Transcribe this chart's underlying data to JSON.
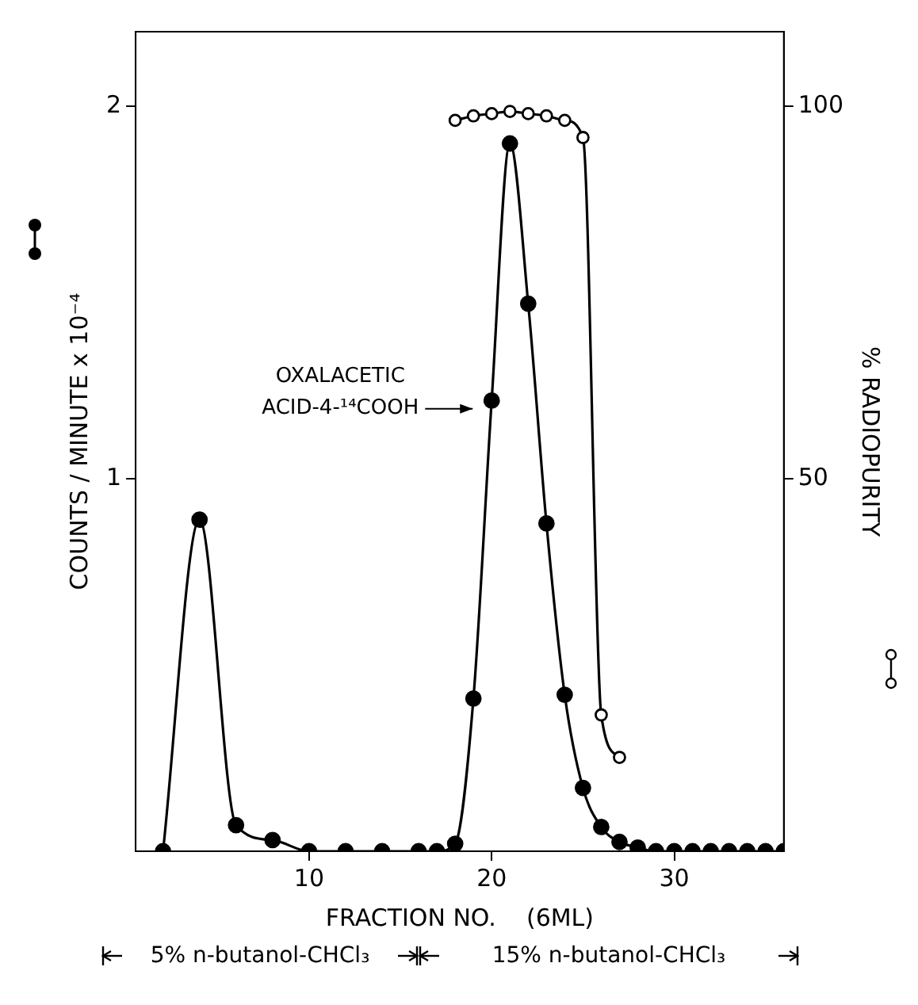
{
  "chart_data": {
    "type": "line",
    "xlabel": "FRACTION NO.    (6ML)",
    "ylabel": "COUNTS / MINUTE x 10⁻⁴",
    "y2label": "% RADIOPURITY",
    "xlim": [
      0.5,
      36
    ],
    "xticks": [
      10,
      20,
      30
    ],
    "ylim": [
      0,
      2.2
    ],
    "yticks": [
      1,
      2
    ],
    "y2lim": [
      0,
      110
    ],
    "y2ticks": [
      50,
      100
    ],
    "grid": false,
    "legend": false,
    "marker": "circle",
    "line_style": "solid",
    "series": [
      {
        "color": "#000000",
        "x": [
          2,
          4,
          6,
          8,
          10,
          12,
          14,
          16,
          17,
          18,
          19,
          20,
          21,
          22,
          23,
          24,
          25,
          26,
          27,
          28,
          29,
          30,
          31,
          32,
          33,
          34,
          35,
          36
        ],
        "values": [
          0,
          0.89,
          0.07,
          0.03,
          0,
          0,
          0,
          0,
          0,
          0.02,
          0.41,
          1.21,
          1.9,
          1.47,
          0.88,
          0.42,
          0.17,
          0.065,
          0.025,
          0.01,
          0,
          0,
          0,
          0,
          0,
          0,
          0,
          0
        ]
      },
      {
        "color": "#000000",
        "axis": "y2",
        "marker": "open circle",
        "x": [
          18,
          19,
          20,
          21,
          22,
          23,
          24,
          25,
          26,
          27
        ],
        "values": [
          98.1,
          98.7,
          99,
          99.3,
          99,
          98.7,
          98.1,
          95.8,
          18.3,
          12.6
        ]
      }
    ],
    "annotations": [
      "OXALACETIC\nACID-4-¹⁴COOH",
      "5% n-butanol-CHCl₃",
      "15% n-butanol-CHCl₃"
    ]
  }
}
